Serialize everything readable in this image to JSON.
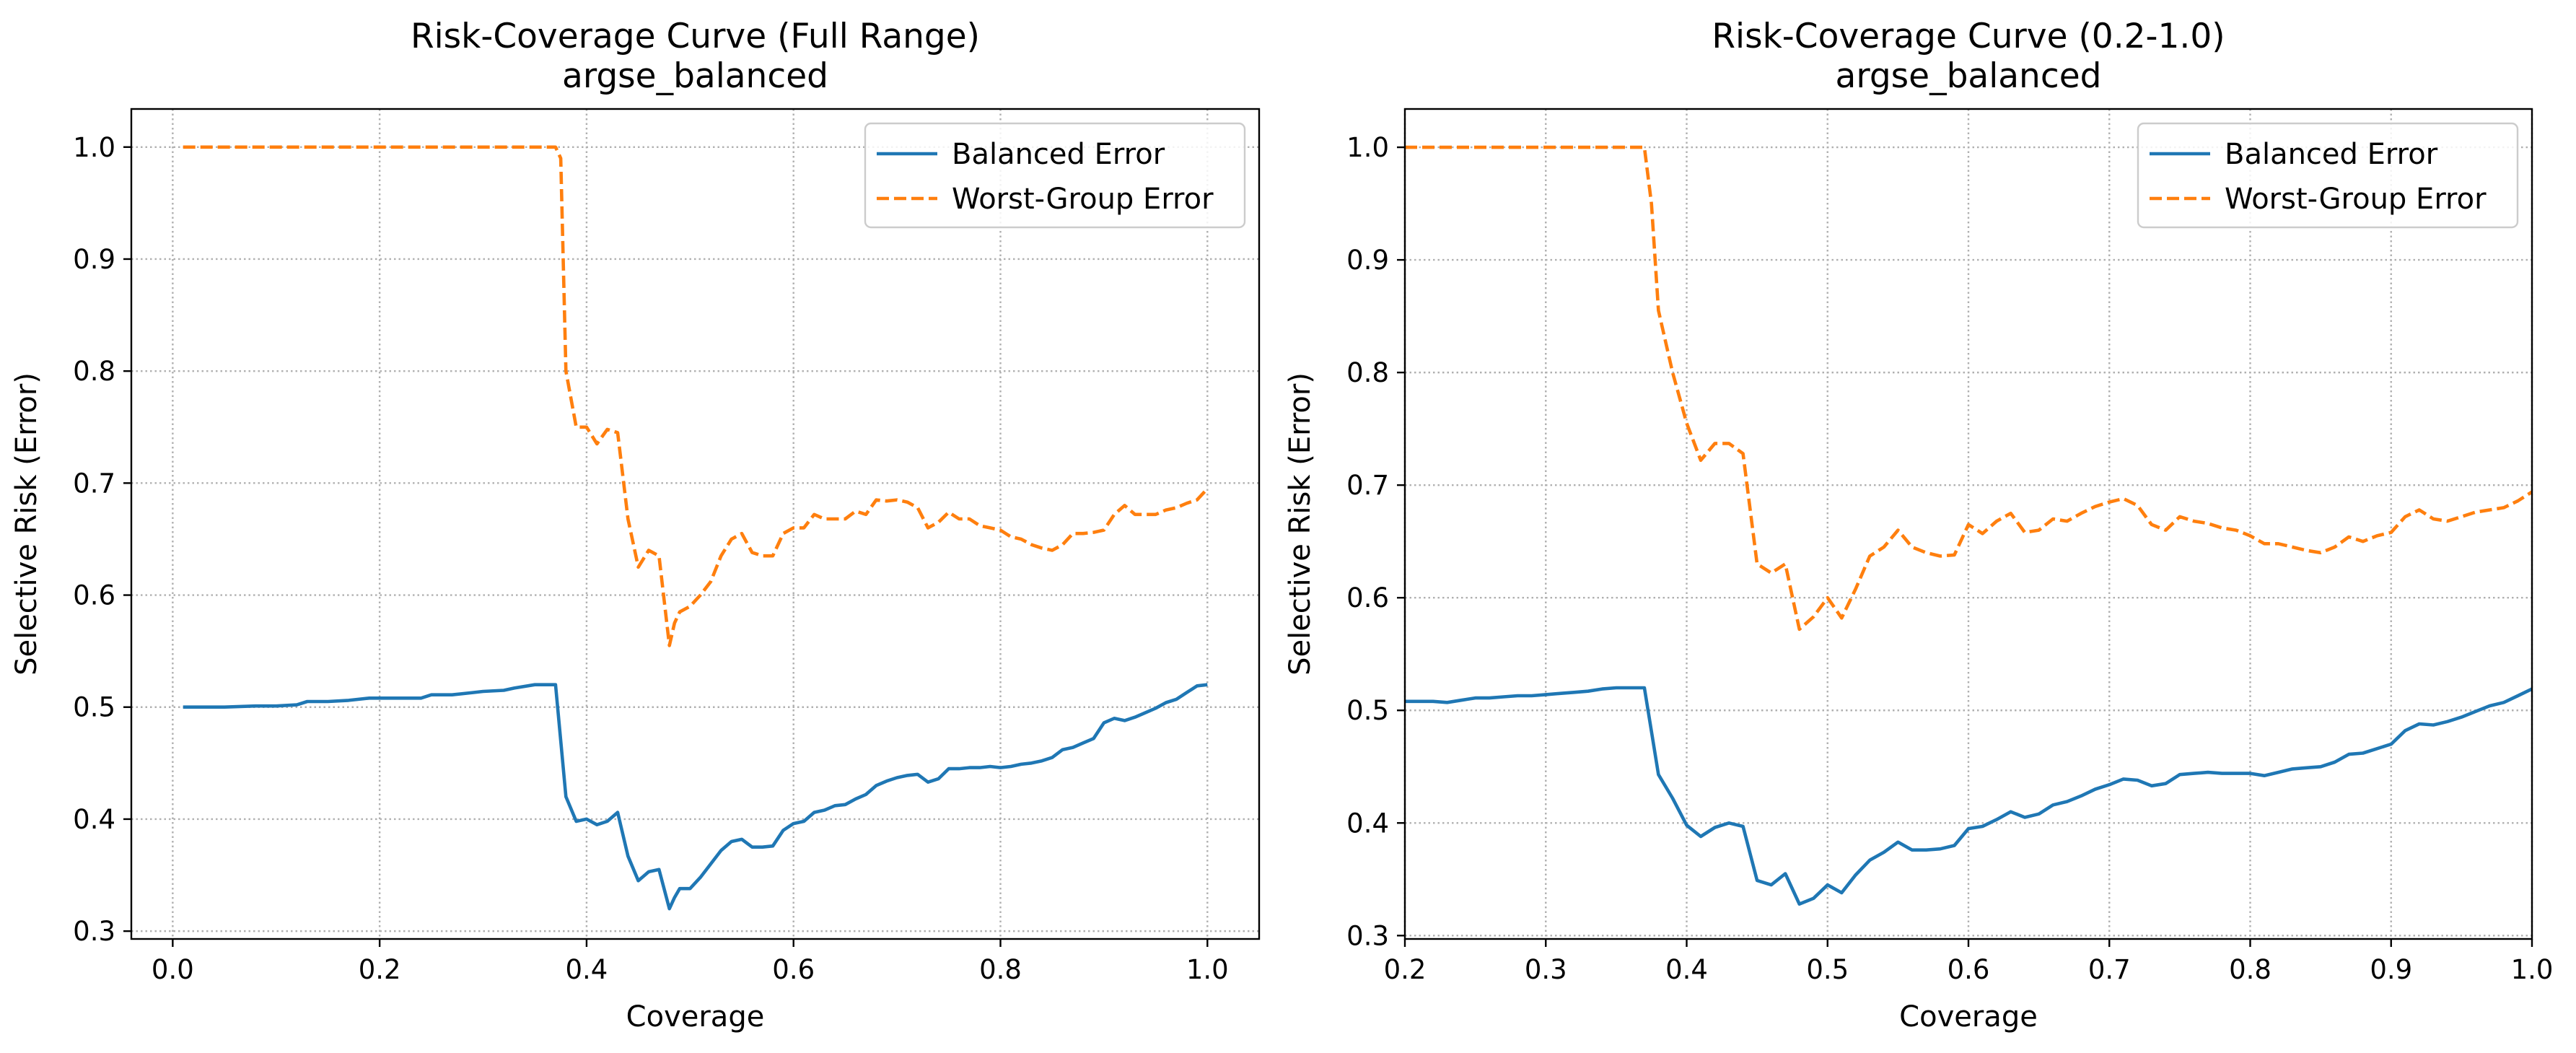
{
  "chart_data": [
    {
      "type": "line",
      "title": "Risk-Coverage Curve (Full Range)",
      "subtitle": "argse_balanced",
      "xlabel": "Coverage",
      "ylabel": "Selective Risk (Error)",
      "xlim": [
        -0.04,
        1.05
      ],
      "ylim": [
        0.293,
        1.034
      ],
      "xticks": [
        0.0,
        0.2,
        0.4,
        0.6,
        0.8,
        1.0
      ],
      "xtick_labels": [
        "0.0",
        "0.2",
        "0.4",
        "0.6",
        "0.8",
        "1.0"
      ],
      "yticks": [
        0.3,
        0.4,
        0.5,
        0.6,
        0.7,
        0.8,
        0.9,
        1.0
      ],
      "ytick_labels": [
        "0.3",
        "0.4",
        "0.5",
        "0.6",
        "0.7",
        "0.8",
        "0.9",
        "1.0"
      ],
      "grid": true,
      "legend_position": "top-right",
      "series": [
        {
          "name": "Balanced Error",
          "color": "#1f77b4",
          "style": "solid",
          "x": [
            0.01,
            0.05,
            0.08,
            0.1,
            0.12,
            0.13,
            0.15,
            0.17,
            0.19,
            0.2,
            0.22,
            0.24,
            0.25,
            0.27,
            0.29,
            0.3,
            0.32,
            0.33,
            0.35,
            0.37,
            0.38,
            0.39,
            0.4,
            0.41,
            0.42,
            0.43,
            0.44,
            0.45,
            0.46,
            0.47,
            0.48,
            0.485,
            0.49,
            0.5,
            0.51,
            0.52,
            0.53,
            0.54,
            0.55,
            0.56,
            0.57,
            0.58,
            0.59,
            0.6,
            0.61,
            0.62,
            0.63,
            0.64,
            0.65,
            0.66,
            0.67,
            0.68,
            0.69,
            0.7,
            0.71,
            0.72,
            0.73,
            0.74,
            0.75,
            0.76,
            0.77,
            0.78,
            0.79,
            0.8,
            0.81,
            0.82,
            0.83,
            0.84,
            0.85,
            0.86,
            0.87,
            0.88,
            0.89,
            0.9,
            0.91,
            0.92,
            0.93,
            0.94,
            0.95,
            0.96,
            0.97,
            0.98,
            0.99,
            1.0
          ],
          "y": [
            0.5,
            0.5,
            0.501,
            0.501,
            0.502,
            0.505,
            0.505,
            0.506,
            0.508,
            0.508,
            0.508,
            0.508,
            0.511,
            0.511,
            0.513,
            0.514,
            0.515,
            0.517,
            0.52,
            0.52,
            0.42,
            0.398,
            0.4,
            0.395,
            0.398,
            0.406,
            0.367,
            0.345,
            0.353,
            0.355,
            0.32,
            0.33,
            0.338,
            0.338,
            0.348,
            0.36,
            0.372,
            0.38,
            0.382,
            0.375,
            0.375,
            0.376,
            0.39,
            0.396,
            0.398,
            0.406,
            0.408,
            0.412,
            0.413,
            0.418,
            0.422,
            0.43,
            0.434,
            0.437,
            0.439,
            0.44,
            0.433,
            0.436,
            0.445,
            0.445,
            0.446,
            0.446,
            0.447,
            0.446,
            0.447,
            0.449,
            0.45,
            0.452,
            0.455,
            0.462,
            0.464,
            0.468,
            0.472,
            0.486,
            0.49,
            0.488,
            0.491,
            0.495,
            0.499,
            0.504,
            0.507,
            0.513,
            0.519,
            0.52
          ]
        },
        {
          "name": "Worst-Group Error",
          "color": "#ff7f0e",
          "style": "dashed",
          "x": [
            0.01,
            0.1,
            0.2,
            0.3,
            0.37,
            0.375,
            0.38,
            0.39,
            0.4,
            0.41,
            0.42,
            0.43,
            0.44,
            0.45,
            0.46,
            0.47,
            0.48,
            0.485,
            0.49,
            0.5,
            0.51,
            0.52,
            0.53,
            0.54,
            0.55,
            0.56,
            0.57,
            0.58,
            0.59,
            0.6,
            0.61,
            0.62,
            0.63,
            0.64,
            0.65,
            0.66,
            0.67,
            0.68,
            0.69,
            0.7,
            0.71,
            0.72,
            0.73,
            0.74,
            0.75,
            0.76,
            0.77,
            0.78,
            0.79,
            0.8,
            0.81,
            0.82,
            0.83,
            0.84,
            0.85,
            0.86,
            0.87,
            0.88,
            0.89,
            0.9,
            0.91,
            0.92,
            0.93,
            0.94,
            0.95,
            0.96,
            0.97,
            0.98,
            0.99,
            1.0
          ],
          "y": [
            1.0,
            1.0,
            1.0,
            1.0,
            1.0,
            0.99,
            0.8,
            0.75,
            0.75,
            0.735,
            0.748,
            0.745,
            0.668,
            0.625,
            0.64,
            0.635,
            0.555,
            0.575,
            0.585,
            0.59,
            0.6,
            0.612,
            0.635,
            0.65,
            0.655,
            0.638,
            0.635,
            0.635,
            0.655,
            0.66,
            0.66,
            0.672,
            0.668,
            0.668,
            0.668,
            0.675,
            0.672,
            0.685,
            0.684,
            0.685,
            0.683,
            0.678,
            0.66,
            0.665,
            0.674,
            0.668,
            0.668,
            0.662,
            0.66,
            0.658,
            0.652,
            0.65,
            0.645,
            0.642,
            0.64,
            0.645,
            0.655,
            0.655,
            0.656,
            0.658,
            0.672,
            0.68,
            0.672,
            0.672,
            0.672,
            0.676,
            0.678,
            0.682,
            0.685,
            0.695
          ]
        }
      ]
    },
    {
      "type": "line",
      "title": "Risk-Coverage Curve (0.2-1.0)",
      "subtitle": "argse_balanced",
      "xlabel": "Coverage",
      "ylabel": "Selective Risk (Error)",
      "xlim": [
        0.2,
        1.0
      ],
      "ylim": [
        0.297,
        1.034
      ],
      "xticks": [
        0.2,
        0.3,
        0.4,
        0.5,
        0.6,
        0.7,
        0.8,
        0.9,
        1.0
      ],
      "xtick_labels": [
        "0.2",
        "0.3",
        "0.4",
        "0.5",
        "0.6",
        "0.7",
        "0.8",
        "0.9",
        "1.0"
      ],
      "yticks": [
        0.3,
        0.4,
        0.5,
        0.6,
        0.7,
        0.8,
        0.9,
        1.0
      ],
      "ytick_labels": [
        "0.3",
        "0.4",
        "0.5",
        "0.6",
        "0.7",
        "0.8",
        "0.9",
        "1.0"
      ],
      "grid": true,
      "legend_position": "top-right",
      "series": [
        {
          "name": "Balanced Error",
          "color": "#1f77b4",
          "style": "solid",
          "x": [
            0.2,
            0.22,
            0.23,
            0.24,
            0.25,
            0.26,
            0.27,
            0.28,
            0.29,
            0.3,
            0.31,
            0.32,
            0.33,
            0.34,
            0.35,
            0.36,
            0.37,
            0.38,
            0.39,
            0.4,
            0.41,
            0.42,
            0.43,
            0.44,
            0.45,
            0.46,
            0.47,
            0.48,
            0.49,
            0.5,
            0.51,
            0.52,
            0.53,
            0.54,
            0.55,
            0.56,
            0.57,
            0.58,
            0.59,
            0.6,
            0.61,
            0.62,
            0.63,
            0.64,
            0.65,
            0.66,
            0.67,
            0.68,
            0.69,
            0.7,
            0.71,
            0.72,
            0.73,
            0.74,
            0.75,
            0.76,
            0.77,
            0.78,
            0.79,
            0.8,
            0.81,
            0.82,
            0.83,
            0.84,
            0.85,
            0.86,
            0.87,
            0.88,
            0.89,
            0.9,
            0.91,
            0.92,
            0.93,
            0.94,
            0.95,
            0.96,
            0.97,
            0.98,
            0.99,
            1.0
          ],
          "y": [
            0.508,
            0.508,
            0.507,
            0.509,
            0.511,
            0.511,
            0.512,
            0.513,
            0.513,
            0.514,
            0.515,
            0.516,
            0.517,
            0.519,
            0.52,
            0.52,
            0.52,
            0.443,
            0.422,
            0.398,
            0.388,
            0.396,
            0.4,
            0.397,
            0.349,
            0.345,
            0.355,
            0.328,
            0.333,
            0.345,
            0.338,
            0.354,
            0.367,
            0.374,
            0.383,
            0.376,
            0.376,
            0.377,
            0.38,
            0.395,
            0.397,
            0.403,
            0.41,
            0.405,
            0.408,
            0.416,
            0.419,
            0.424,
            0.43,
            0.434,
            0.439,
            0.438,
            0.433,
            0.435,
            0.443,
            0.444,
            0.445,
            0.444,
            0.444,
            0.444,
            0.442,
            0.445,
            0.448,
            0.449,
            0.45,
            0.454,
            0.461,
            0.462,
            0.466,
            0.47,
            0.482,
            0.488,
            0.487,
            0.49,
            0.494,
            0.499,
            0.504,
            0.507,
            0.513,
            0.519
          ]
        },
        {
          "name": "Worst-Group Error",
          "color": "#ff7f0e",
          "style": "dashed",
          "x": [
            0.2,
            0.25,
            0.3,
            0.35,
            0.37,
            0.375,
            0.38,
            0.39,
            0.4,
            0.41,
            0.42,
            0.43,
            0.44,
            0.45,
            0.46,
            0.47,
            0.48,
            0.49,
            0.5,
            0.51,
            0.52,
            0.53,
            0.54,
            0.55,
            0.56,
            0.57,
            0.58,
            0.59,
            0.6,
            0.61,
            0.62,
            0.63,
            0.64,
            0.65,
            0.66,
            0.67,
            0.68,
            0.69,
            0.7,
            0.71,
            0.72,
            0.73,
            0.74,
            0.75,
            0.76,
            0.77,
            0.78,
            0.79,
            0.8,
            0.81,
            0.82,
            0.83,
            0.84,
            0.85,
            0.86,
            0.87,
            0.88,
            0.89,
            0.9,
            0.91,
            0.92,
            0.93,
            0.94,
            0.95,
            0.96,
            0.97,
            0.98,
            0.99,
            1.0
          ],
          "y": [
            1.0,
            1.0,
            1.0,
            1.0,
            1.0,
            0.95,
            0.855,
            0.8,
            0.755,
            0.722,
            0.737,
            0.737,
            0.728,
            0.63,
            0.622,
            0.63,
            0.572,
            0.583,
            0.6,
            0.582,
            0.608,
            0.637,
            0.645,
            0.66,
            0.645,
            0.64,
            0.637,
            0.638,
            0.665,
            0.657,
            0.668,
            0.675,
            0.658,
            0.66,
            0.67,
            0.668,
            0.675,
            0.681,
            0.685,
            0.688,
            0.682,
            0.665,
            0.66,
            0.672,
            0.668,
            0.666,
            0.662,
            0.66,
            0.655,
            0.648,
            0.648,
            0.645,
            0.642,
            0.64,
            0.645,
            0.654,
            0.65,
            0.655,
            0.658,
            0.672,
            0.678,
            0.67,
            0.668,
            0.672,
            0.676,
            0.678,
            0.68,
            0.686,
            0.694
          ]
        }
      ]
    }
  ]
}
